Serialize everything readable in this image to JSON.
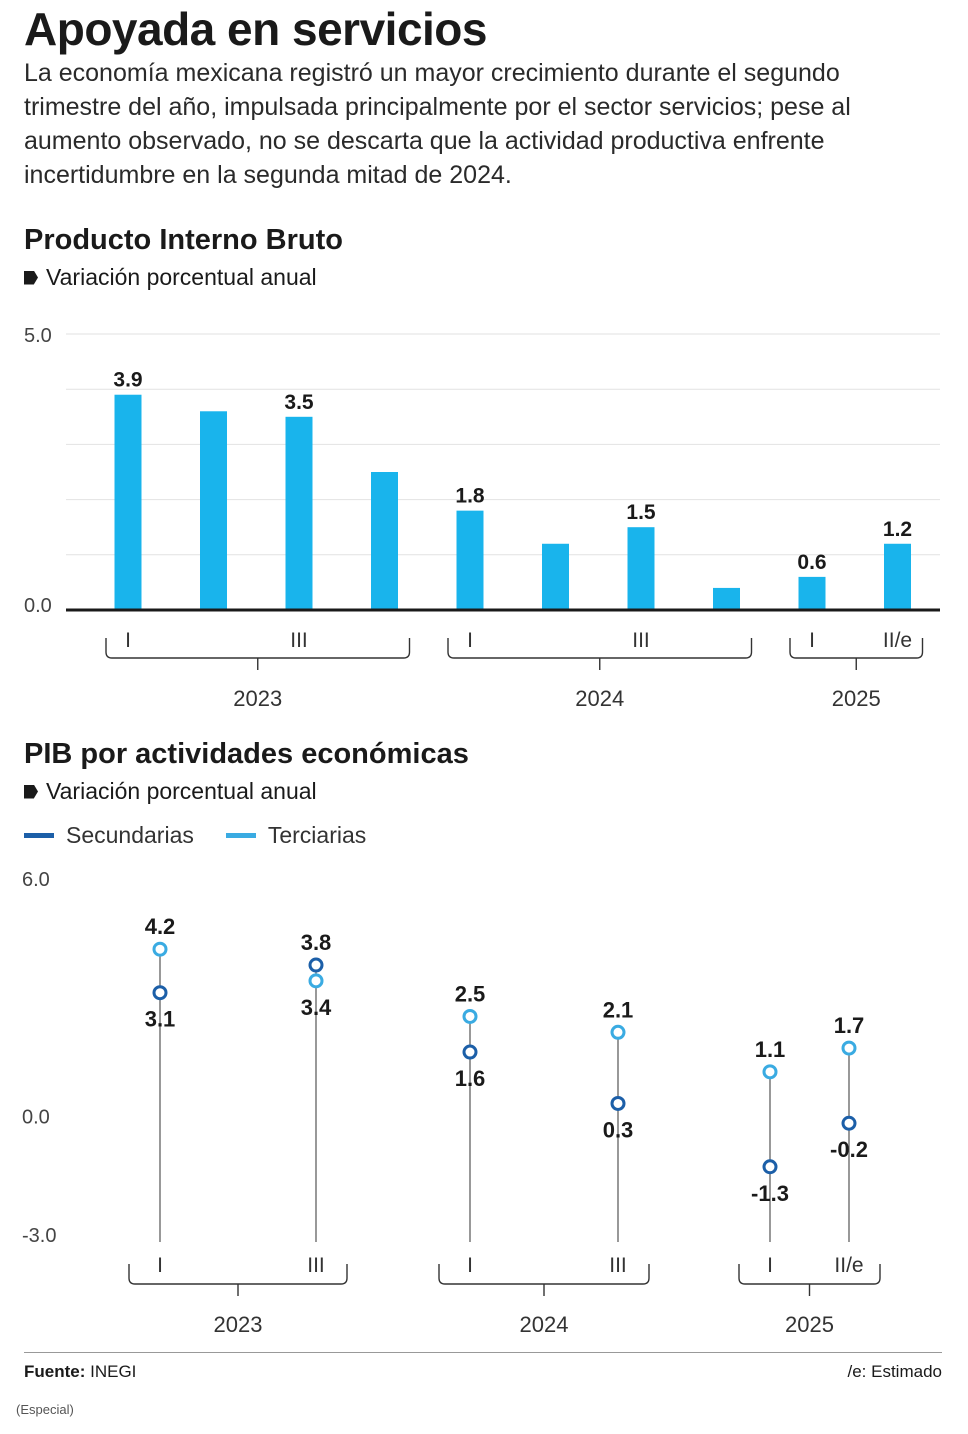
{
  "title": "Apoyada en servicios",
  "intro": "La economía mexicana registró un mayor crecimiento durante el segundo trimestre del año, impulsada principalmente por el sector servicios; pese al aumento observado, no se descarta que la actividad productiva enfrente incertidumbre en la segunda mitad de 2024.",
  "colors": {
    "bar": "#19b4ec",
    "secundarias": "#1c5fa8",
    "terciarias": "#3aabe2",
    "grid": "#e2e2e2",
    "axis": "#1a1a1a"
  },
  "chart_data": [
    {
      "type": "bar",
      "title": "Producto Interno Bruto",
      "subtitle": "Variación porcentual anual",
      "ylim": [
        0,
        5
      ],
      "ytick_labels": [
        "5.0",
        "0.0"
      ],
      "grid": true,
      "categories": [
        "2023-I",
        "2023-II",
        "2023-III",
        "2023-IV",
        "2024-I",
        "2024-II",
        "2024-III",
        "2024-IV",
        "2025-I",
        "2025-II/e"
      ],
      "values": [
        3.9,
        3.6,
        3.5,
        2.5,
        1.8,
        1.2,
        1.5,
        0.4,
        0.6,
        1.2
      ],
      "value_labels": [
        "3.9",
        "",
        "3.5",
        "",
        "1.8",
        "",
        "1.5",
        "",
        "0.6",
        "1.2"
      ],
      "tick_labels": [
        "I",
        "",
        "III",
        "",
        "I",
        "",
        "III",
        "",
        "I",
        "II/e"
      ],
      "year_groups": [
        {
          "label": "2023",
          "start": 0,
          "end": 3
        },
        {
          "label": "2024",
          "start": 4,
          "end": 7
        },
        {
          "label": "2025",
          "start": 8,
          "end": 9
        }
      ]
    },
    {
      "type": "scatter",
      "title": "PIB por actividades económicas",
      "subtitle": "Variación porcentual anual",
      "ylim": [
        -3,
        6
      ],
      "ytick_labels": [
        "6.0",
        "0.0",
        "-3.0"
      ],
      "grid": false,
      "legend_position": "top-left",
      "categories": [
        "2023-I",
        "2023-III",
        "2024-I",
        "2024-III",
        "2025-I",
        "2025-II/e"
      ],
      "tick_labels": [
        "I",
        "III",
        "I",
        "III",
        "I",
        "II/e"
      ],
      "series": [
        {
          "name": "Secundarias",
          "values": [
            3.1,
            3.8,
            1.6,
            0.3,
            -1.3,
            -0.2
          ]
        },
        {
          "name": "Terciarias",
          "values": [
            4.2,
            3.4,
            2.5,
            2.1,
            1.1,
            1.7
          ]
        }
      ],
      "year_groups": [
        {
          "label": "2023",
          "start": 0,
          "end": 1
        },
        {
          "label": "2024",
          "start": 2,
          "end": 3
        },
        {
          "label": "2025",
          "start": 4,
          "end": 5
        }
      ]
    }
  ],
  "footer": {
    "source_label": "Fuente:",
    "source_value": "INEGI",
    "note": "/e: Estimado",
    "credit": "(Especial)"
  }
}
